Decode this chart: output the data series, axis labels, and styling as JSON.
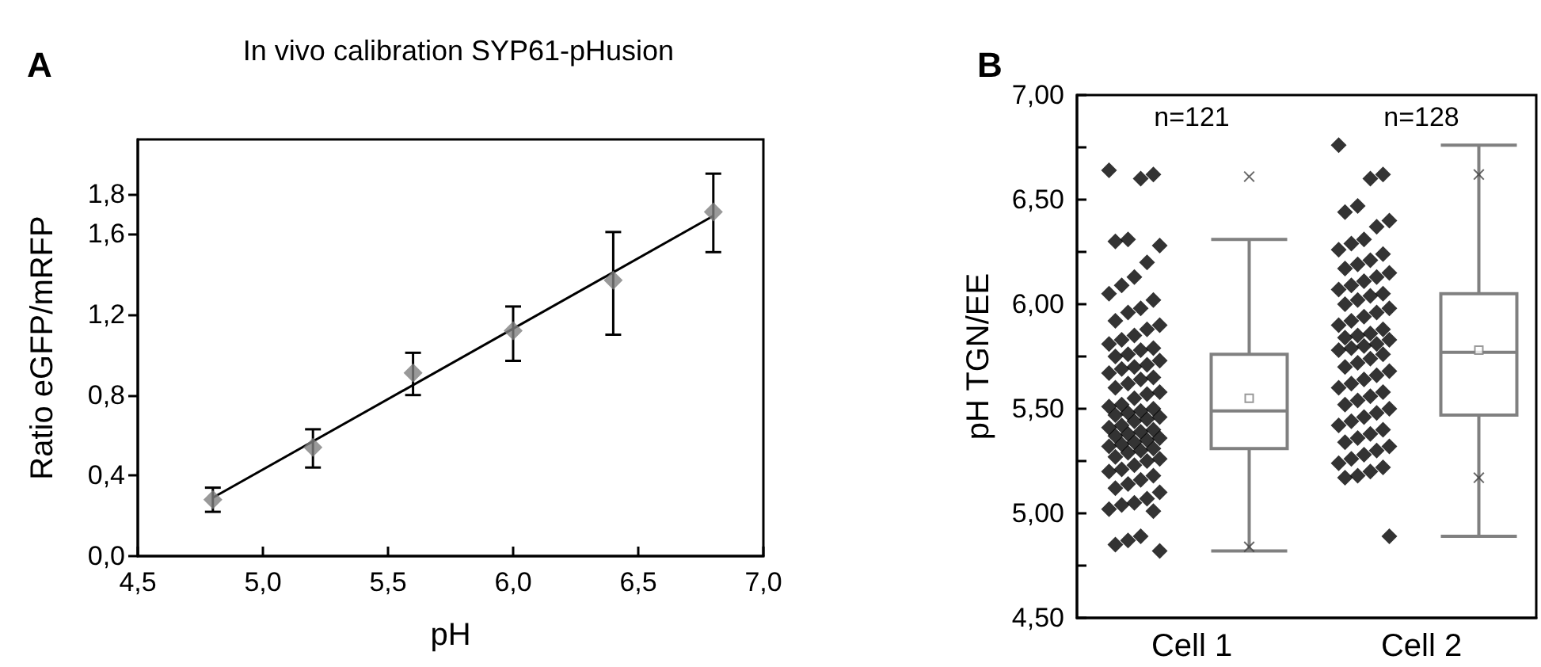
{
  "chart_data": [
    {
      "type": "scatter",
      "title": "In vivo calibration SYP61-pHusion",
      "xlabel": "pH",
      "ylabel": "Ratio eGFP/mRFP",
      "annotations": [
        "A"
      ],
      "xlim": [
        4.5,
        7.0
      ],
      "xticks": [
        {
          "value": 4.5,
          "label": "4,5"
        },
        {
          "value": 5.0,
          "label": "5,0"
        },
        {
          "value": 5.5,
          "label": "5,5"
        },
        {
          "value": 6.0,
          "label": "6,0"
        },
        {
          "value": 6.5,
          "label": "6,5"
        },
        {
          "value": 7.0,
          "label": "7,0"
        }
      ],
      "ylim": [
        0,
        2.07
      ],
      "yticks": [
        {
          "value": 0,
          "label": "0,0"
        },
        {
          "value": 0.4,
          "label": "0,4"
        },
        {
          "value": 0.8,
          "label": "0,8"
        },
        {
          "value": 1.2,
          "label": "1,2"
        },
        {
          "value": 1.6,
          "label": "1,6"
        },
        {
          "value": 1.8,
          "label": "1,8"
        }
      ],
      "series": [
        {
          "type": "scatter",
          "color": "#808080",
          "marker": "diamond",
          "x": [
            4.8,
            5.2,
            5.6,
            6.0,
            6.4,
            6.8
          ],
          "values": [
            0.28,
            0.54,
            0.91,
            1.12,
            1.37,
            1.71
          ],
          "errors": [
            [
              0.22,
              0.34
            ],
            [
              0.44,
              0.63
            ],
            [
              0.8,
              1.01
            ],
            [
              0.97,
              1.24
            ],
            [
              1.1,
              1.61
            ],
            [
              1.51,
              1.9
            ]
          ]
        },
        {
          "type": "line",
          "color": "#000000",
          "marker": "none",
          "x": [
            4.8,
            6.8
          ],
          "values": [
            0.29,
            1.69
          ]
        }
      ]
    },
    {
      "type": "box",
      "ylabel": "pH TGN/EE",
      "annotations": [
        "B",
        "n=121",
        "n=128"
      ],
      "categories": [
        "Cell 1",
        "Cell 2"
      ],
      "ylim": [
        4.5,
        7.0
      ],
      "yticks": [
        {
          "value": 4.5,
          "label": "4,50"
        },
        {
          "value": 4.75,
          "label": null
        },
        {
          "value": 5.0,
          "label": "5,00"
        },
        {
          "value": 5.25,
          "label": null
        },
        {
          "value": 5.5,
          "label": "5,50"
        },
        {
          "value": 5.75,
          "label": null
        },
        {
          "value": 6.0,
          "label": "6,00"
        },
        {
          "value": 6.25,
          "label": null
        },
        {
          "value": 6.5,
          "label": "6,50"
        },
        {
          "value": 6.75,
          "label": null
        },
        {
          "value": 7.0,
          "label": "7,00"
        }
      ],
      "series": [
        {
          "type": "box",
          "color": "#808080",
          "boxes": [
            {
              "low": 4.82,
              "q1": 5.31,
              "median": 5.49,
              "q3": 5.76,
              "high": 6.31,
              "mean": 5.55,
              "outliers": [
                6.61,
                4.84
              ]
            },
            {
              "low": 4.89,
              "q1": 5.47,
              "median": 5.77,
              "q3": 6.05,
              "high": 6.76,
              "mean": 5.78,
              "outliers": [
                6.62,
                5.17
              ]
            }
          ]
        },
        {
          "type": "scatter",
          "color": "#000000",
          "marker": "diamond",
          "x": [
            "Cell 1",
            "Cell 1",
            "Cell 1",
            "Cell 1",
            "Cell 1",
            "Cell 1",
            "Cell 1",
            "Cell 1",
            "Cell 1",
            "Cell 1",
            "Cell 1",
            "Cell 1",
            "Cell 1",
            "Cell 1",
            "Cell 1",
            "Cell 1",
            "Cell 1",
            "Cell 1",
            "Cell 1",
            "Cell 1",
            "Cell 1",
            "Cell 1",
            "Cell 1",
            "Cell 1",
            "Cell 1",
            "Cell 1",
            "Cell 1",
            "Cell 1",
            "Cell 1",
            "Cell 1",
            "Cell 1",
            "Cell 1",
            "Cell 1",
            "Cell 1",
            "Cell 1",
            "Cell 1",
            "Cell 1",
            "Cell 1",
            "Cell 1",
            "Cell 1",
            "Cell 1",
            "Cell 1",
            "Cell 1",
            "Cell 1",
            "Cell 1",
            "Cell 1",
            "Cell 1",
            "Cell 1",
            "Cell 1",
            "Cell 1",
            "Cell 1",
            "Cell 1",
            "Cell 1",
            "Cell 1",
            "Cell 1",
            "Cell 1",
            "Cell 1",
            "Cell 1",
            "Cell 1",
            "Cell 1",
            "Cell 1",
            "Cell 1",
            "Cell 1",
            "Cell 1",
            "Cell 1",
            "Cell 1",
            "Cell 1",
            "Cell 1",
            "Cell 1",
            "Cell 1",
            "Cell 1",
            "Cell 1",
            "Cell 1",
            "Cell 1",
            "Cell 1",
            "Cell 1",
            "Cell 1",
            "Cell 1"
          ],
          "values": [
            6.64,
            6.62,
            6.6,
            6.31,
            6.3,
            6.28,
            6.2,
            6.13,
            6.09,
            6.05,
            6.02,
            5.98,
            5.96,
            5.92,
            5.9,
            5.88,
            5.85,
            5.83,
            5.81,
            5.79,
            5.78,
            5.76,
            5.75,
            5.73,
            5.71,
            5.7,
            5.69,
            5.67,
            5.65,
            5.64,
            5.62,
            5.6,
            5.58,
            5.57,
            5.55,
            5.52,
            5.51,
            5.5,
            5.49,
            5.48,
            5.47,
            5.46,
            5.45,
            5.44,
            5.42,
            5.41,
            5.4,
            5.39,
            5.38,
            5.37,
            5.36,
            5.35,
            5.34,
            5.33,
            5.32,
            5.31,
            5.3,
            5.29,
            5.27,
            5.26,
            5.25,
            5.23,
            5.21,
            5.2,
            5.18,
            5.16,
            5.14,
            5.12,
            5.1,
            5.07,
            5.05,
            5.04,
            5.02,
            5.01,
            4.89,
            4.87,
            4.85,
            4.82
          ]
        },
        {
          "type": "scatter",
          "color": "#000000",
          "marker": "diamond",
          "x": [
            "Cell 2",
            "Cell 2",
            "Cell 2",
            "Cell 2",
            "Cell 2",
            "Cell 2",
            "Cell 2",
            "Cell 2",
            "Cell 2",
            "Cell 2",
            "Cell 2",
            "Cell 2",
            "Cell 2",
            "Cell 2",
            "Cell 2",
            "Cell 2",
            "Cell 2",
            "Cell 2",
            "Cell 2",
            "Cell 2",
            "Cell 2",
            "Cell 2",
            "Cell 2",
            "Cell 2",
            "Cell 2",
            "Cell 2",
            "Cell 2",
            "Cell 2",
            "Cell 2",
            "Cell 2",
            "Cell 2",
            "Cell 2",
            "Cell 2",
            "Cell 2",
            "Cell 2",
            "Cell 2",
            "Cell 2",
            "Cell 2",
            "Cell 2",
            "Cell 2",
            "Cell 2",
            "Cell 2",
            "Cell 2",
            "Cell 2",
            "Cell 2",
            "Cell 2",
            "Cell 2",
            "Cell 2",
            "Cell 2",
            "Cell 2",
            "Cell 2",
            "Cell 2",
            "Cell 2",
            "Cell 2",
            "Cell 2",
            "Cell 2",
            "Cell 2",
            "Cell 2",
            "Cell 2",
            "Cell 2",
            "Cell 2",
            "Cell 2",
            "Cell 2",
            "Cell 2",
            "Cell 2",
            "Cell 2",
            "Cell 2",
            "Cell 2",
            "Cell 2"
          ],
          "values": [
            6.76,
            6.62,
            6.6,
            6.47,
            6.44,
            6.4,
            6.37,
            6.31,
            6.29,
            6.26,
            6.24,
            6.21,
            6.19,
            6.17,
            6.15,
            6.13,
            6.11,
            6.09,
            6.07,
            6.05,
            6.04,
            6.02,
            6.0,
            5.98,
            5.96,
            5.94,
            5.92,
            5.9,
            5.88,
            5.86,
            5.85,
            5.84,
            5.83,
            5.81,
            5.8,
            5.79,
            5.78,
            5.76,
            5.74,
            5.72,
            5.7,
            5.68,
            5.66,
            5.64,
            5.62,
            5.6,
            5.58,
            5.56,
            5.54,
            5.52,
            5.5,
            5.48,
            5.46,
            5.44,
            5.42,
            5.4,
            5.38,
            5.36,
            5.34,
            5.32,
            5.3,
            5.28,
            5.26,
            5.24,
            5.22,
            5.2,
            5.18,
            5.17,
            4.89
          ]
        }
      ]
    }
  ]
}
